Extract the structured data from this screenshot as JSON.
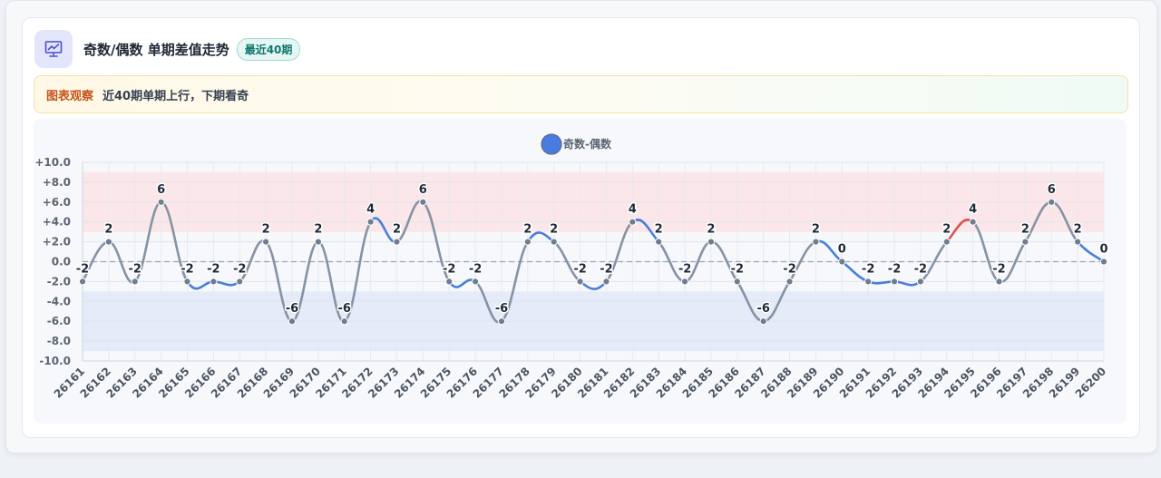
{
  "header": {
    "title": "奇数/偶数 单期差值走势",
    "badge": "最近40期",
    "icon": "trend-chart-icon"
  },
  "insight": {
    "label": "图表观察",
    "text": "近40期单期上行，下期看奇"
  },
  "colors": {
    "up": "#d9534f",
    "down": "#4a7fd8",
    "flat": "#8593a5",
    "legend": "#4a7be0",
    "upper_band": "#fbe3e5",
    "lower_band": "#e3e9f8"
  },
  "chart_data": {
    "type": "line",
    "legend": [
      "奇数-偶数"
    ],
    "legend_position": "top-center",
    "grid": true,
    "ylim": [
      -10,
      10
    ],
    "y_ticks": [
      "+10.0",
      "+8.0",
      "+6.0",
      "+4.0",
      "+2.0",
      "0.0",
      "-2.0",
      "-4.0",
      "-6.0",
      "-8.0",
      "-10.0"
    ],
    "bands": [
      {
        "range": [
          3,
          9
        ],
        "color": "red"
      },
      {
        "range": [
          -9,
          -3
        ],
        "color": "blue"
      }
    ],
    "baseline": 0,
    "x": [
      "26161",
      "26162",
      "26163",
      "26164",
      "26165",
      "26166",
      "26167",
      "26168",
      "26169",
      "26170",
      "26171",
      "26172",
      "26173",
      "26174",
      "26175",
      "26176",
      "26177",
      "26178",
      "26179",
      "26180",
      "26181",
      "26182",
      "26183",
      "26184",
      "26185",
      "26186",
      "26187",
      "26188",
      "26189",
      "26190",
      "26191",
      "26192",
      "26193",
      "26194",
      "26195",
      "26196",
      "26197",
      "26198",
      "26199",
      "26200"
    ],
    "series": [
      {
        "name": "奇数-偶数",
        "values": [
          -2,
          2,
          -2,
          6,
          -2,
          -2,
          -2,
          2,
          -6,
          2,
          -6,
          4,
          2,
          6,
          -2,
          -2,
          -6,
          2,
          2,
          -2,
          -2,
          4,
          2,
          -2,
          2,
          -2,
          -6,
          -2,
          2,
          0,
          -2,
          -2,
          -2,
          2,
          4,
          -2,
          2,
          6,
          2,
          0
        ],
        "labels": [
          "-2",
          "2",
          "-2",
          "6",
          "-2",
          "-2",
          "-2",
          "2",
          "-6",
          "2",
          "-6",
          "4",
          "2",
          "6",
          "-2",
          "-2",
          "-6",
          "2",
          "2",
          "-2",
          "-2",
          "4",
          "2",
          "-2",
          "2",
          "-2",
          "-6",
          "-2",
          "2",
          "0",
          "-2",
          "-2",
          "-2",
          "2",
          "4",
          "-2",
          "2",
          "6",
          "2",
          "0"
        ]
      }
    ]
  }
}
